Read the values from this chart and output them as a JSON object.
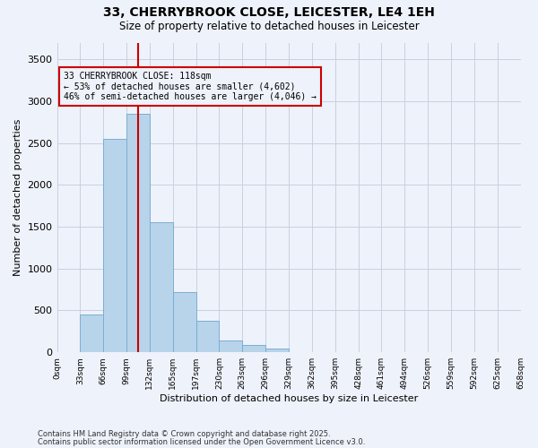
{
  "title": "33, CHERRYBROOK CLOSE, LEICESTER, LE4 1EH",
  "subtitle": "Size of property relative to detached houses in Leicester",
  "xlabel": "Distribution of detached houses by size in Leicester",
  "ylabel": "Number of detached properties",
  "bar_color": "#b8d4ea",
  "bar_edge_color": "#7aaed4",
  "background_color": "#eef2fa",
  "grid_color": "#c8d0e0",
  "annotation_line_color": "#cc0000",
  "annotation_box_color": "#cc0000",
  "bin_labels": [
    "0sqm",
    "33sqm",
    "66sqm",
    "99sqm",
    "132sqm",
    "165sqm",
    "197sqm",
    "230sqm",
    "263sqm",
    "296sqm",
    "329sqm",
    "362sqm",
    "395sqm",
    "428sqm",
    "461sqm",
    "494sqm",
    "526sqm",
    "559sqm",
    "592sqm",
    "625sqm",
    "658sqm"
  ],
  "bar_heights": [
    0,
    450,
    2550,
    2850,
    1550,
    720,
    380,
    140,
    90,
    50,
    0,
    0,
    0,
    0,
    0,
    0,
    0,
    0,
    0,
    0
  ],
  "num_bins": 20,
  "ylim": [
    0,
    3700
  ],
  "yticks": [
    0,
    500,
    1000,
    1500,
    2000,
    2500,
    3000,
    3500
  ],
  "property_bin": 3.5,
  "annotation_text": "33 CHERRYBROOK CLOSE: 118sqm\n← 53% of detached houses are smaller (4,602)\n46% of semi-detached houses are larger (4,046) →",
  "footnote1": "Contains HM Land Registry data © Crown copyright and database right 2025.",
  "footnote2": "Contains public sector information licensed under the Open Government Licence v3.0."
}
